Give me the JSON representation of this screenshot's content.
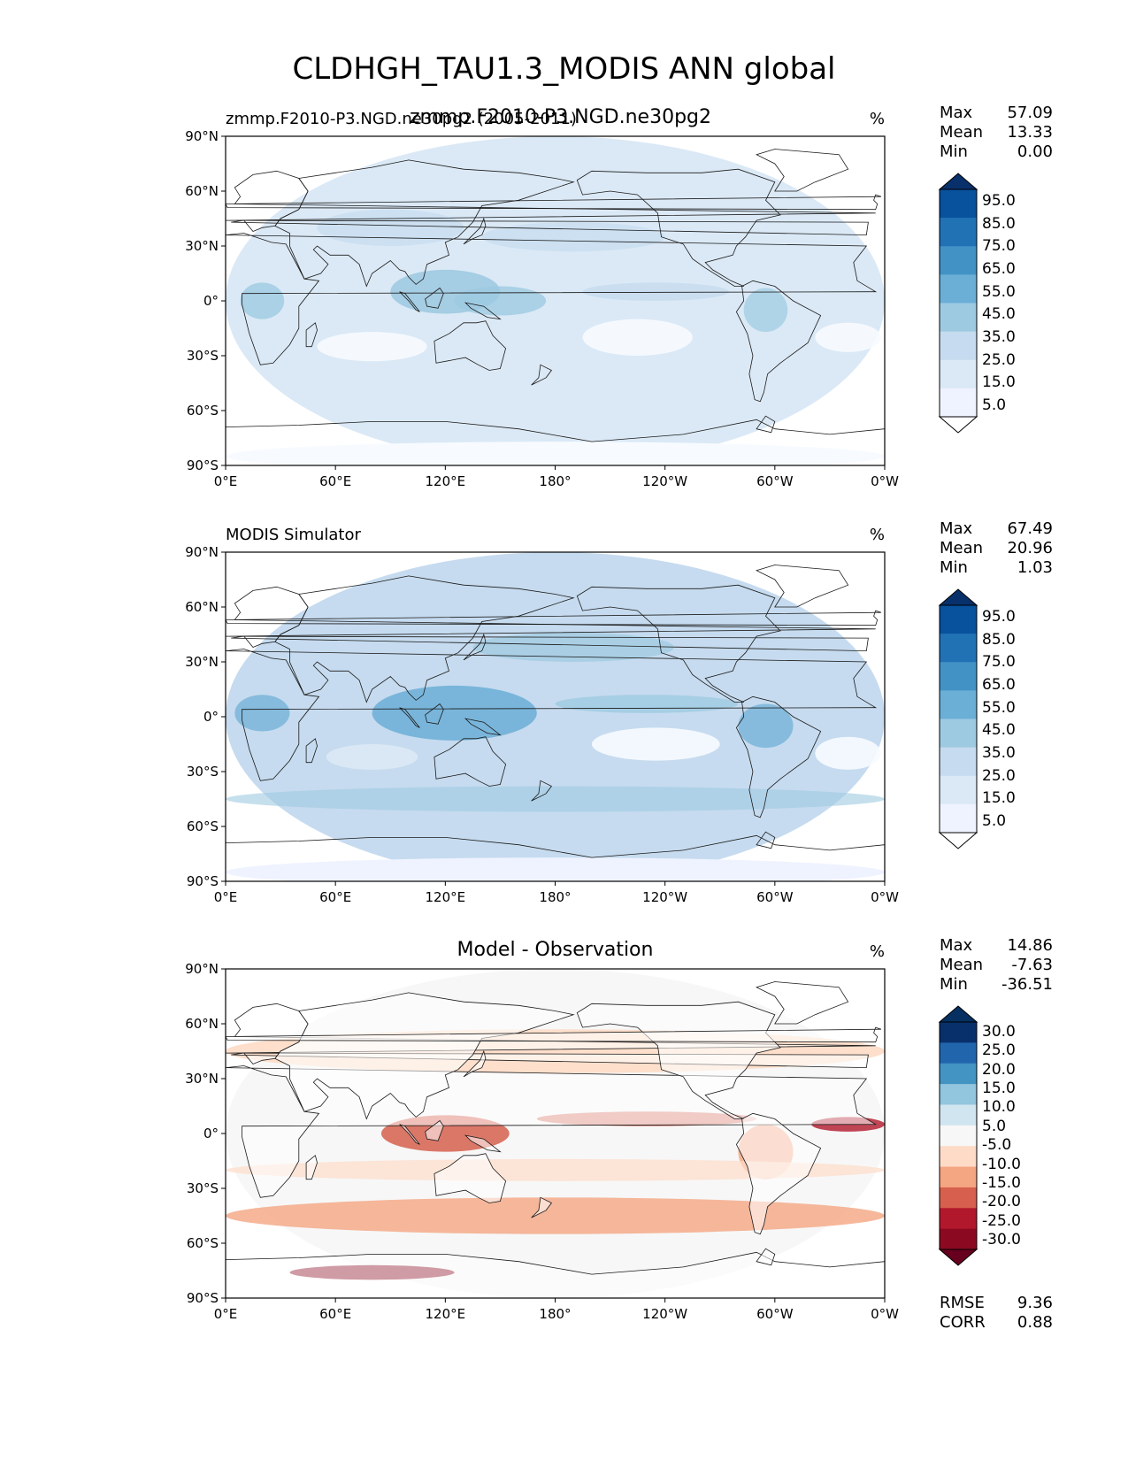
{
  "title": "CLDHGH_TAU1.3_MODIS ANN global",
  "chart_data": [
    {
      "type": "heatmap",
      "panel": "test",
      "left_title": "zmmp.F2010-P3.NGD.ne30pg2 (2005-2011)",
      "center_title": "zmmp.F2010-P3.NGD.ne30pg2",
      "units": "%",
      "stats": [
        {
          "label": "Max",
          "value": "57.09"
        },
        {
          "label": "Mean",
          "value": "13.33"
        },
        {
          "label": "Min",
          "value": "0.00"
        }
      ],
      "colorbar_levels": [
        "95.0",
        "85.0",
        "75.0",
        "65.0",
        "55.0",
        "45.0",
        "35.0",
        "25.0",
        "15.0",
        "5.0"
      ],
      "colorbar_colors": [
        "#08306b",
        "#08519c",
        "#2171b5",
        "#4292c6",
        "#6baed6",
        "#9ecae1",
        "#c6dbef",
        "#dbe9f6",
        "#eff3ff",
        "#ffffff"
      ]
    },
    {
      "type": "heatmap",
      "panel": "reference",
      "left_title": "MODIS Simulator",
      "units": "%",
      "stats": [
        {
          "label": "Max",
          "value": "67.49"
        },
        {
          "label": "Mean",
          "value": "20.96"
        },
        {
          "label": "Min",
          "value": "1.03"
        }
      ],
      "colorbar_levels": [
        "95.0",
        "85.0",
        "75.0",
        "65.0",
        "55.0",
        "45.0",
        "35.0",
        "25.0",
        "15.0",
        "5.0"
      ],
      "colorbar_colors": [
        "#08306b",
        "#08519c",
        "#2171b5",
        "#4292c6",
        "#6baed6",
        "#9ecae1",
        "#c6dbef",
        "#dbe9f6",
        "#eff3ff",
        "#ffffff"
      ]
    },
    {
      "type": "heatmap",
      "panel": "difference",
      "center_title": "Model - Observation",
      "units": "%",
      "stats": [
        {
          "label": "Max",
          "value": "14.86"
        },
        {
          "label": "Mean",
          "value": "-7.63"
        },
        {
          "label": "Min",
          "value": "-36.51"
        }
      ],
      "bottom_stats": [
        {
          "label": "RMSE",
          "value": "9.36"
        },
        {
          "label": "CORR",
          "value": "0.88"
        }
      ],
      "colorbar_levels": [
        "30.0",
        "25.0",
        "20.0",
        "15.0",
        "10.0",
        "5.0",
        "-5.0",
        "-10.0",
        "-15.0",
        "-20.0",
        "-25.0",
        "-30.0"
      ],
      "colorbar_colors": [
        "#053061",
        "#08306b",
        "#2166ac",
        "#4393c3",
        "#92c5de",
        "#d1e5f0",
        "#f7f7f7",
        "#fddbc7",
        "#f4a582",
        "#d6604d",
        "#b2182b",
        "#8b0a21",
        "#67001f"
      ]
    }
  ],
  "axes": {
    "x_ticks": [
      "0°E",
      "60°E",
      "120°E",
      "180°",
      "120°W",
      "60°W",
      "0°W"
    ],
    "y_ticks": [
      "90°N",
      "60°N",
      "30°N",
      "0°",
      "30°S",
      "60°S",
      "90°S"
    ]
  }
}
